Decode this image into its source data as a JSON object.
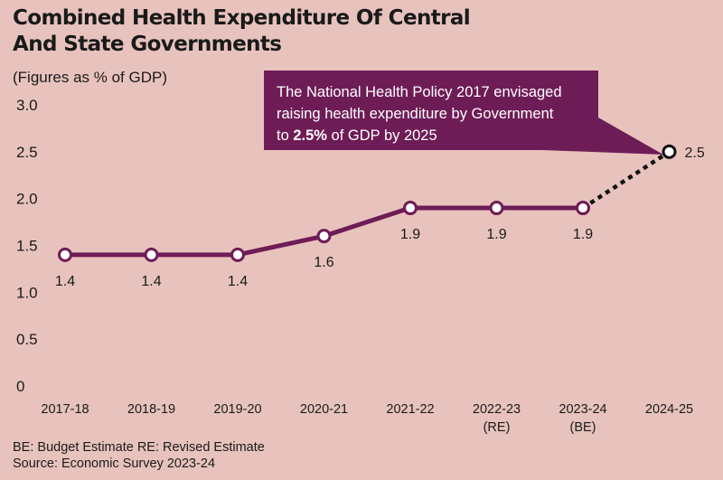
{
  "title": "Combined Health Expenditure Of Central And State Governments",
  "subtitle": "(Figures as % of GDP)",
  "callout": {
    "line1": "The National Health Policy 2017 envisaged",
    "line2": "raising health expenditure by Government",
    "line3_pre": "to ",
    "line3_bold": "2.5%",
    "line3_post": " of GDP by 2025"
  },
  "footer": {
    "legend": "BE: Budget Estimate  RE: Revised Estimate",
    "source": "Source: Economic Survey 2023-24"
  },
  "colors": {
    "background": "#e8c3bd",
    "line": "#6e1c56",
    "callout": "#6e1c56"
  },
  "chart_data": {
    "type": "line",
    "ylabel": "(Figures as % of GDP)",
    "ylim": [
      0,
      3.0
    ],
    "yticks": [
      "0",
      "0.5",
      "1.0",
      "1.5",
      "2.0",
      "2.5",
      "3.0"
    ],
    "categories": [
      "2017-18",
      "2018-19",
      "2019-20",
      "2020-21",
      "2021-22",
      "2022-23",
      "2023-24",
      "2024-25"
    ],
    "category_sublabels": [
      "",
      "",
      "",
      "",
      "",
      "(RE)",
      "(BE)",
      ""
    ],
    "series": [
      {
        "values": [
          1.4,
          1.4,
          1.4,
          1.6,
          1.9,
          1.9,
          1.9,
          2.5
        ],
        "labels": [
          "1.4",
          "1.4",
          "1.4",
          "1.6",
          "1.9",
          "1.9",
          "1.9",
          "2.5"
        ],
        "dashed_from_index": 6
      }
    ],
    "grid": false
  }
}
